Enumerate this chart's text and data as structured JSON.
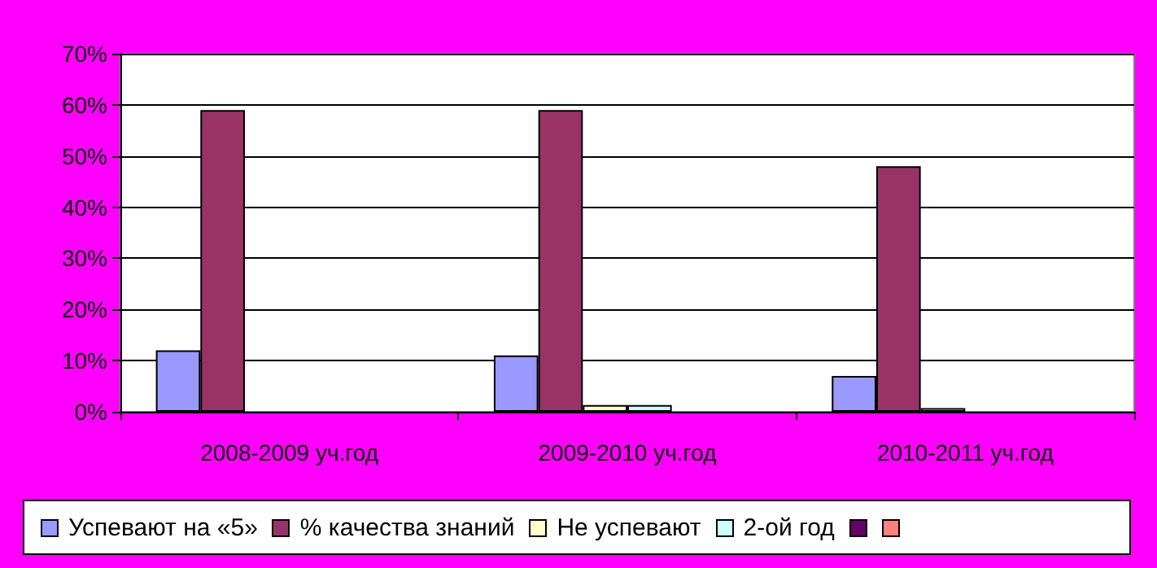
{
  "chart_data": {
    "type": "bar",
    "categories": [
      "2008-2009 уч.год",
      "2009-2010 уч.год",
      "2010-2011 уч.год"
    ],
    "series": [
      {
        "name": "Успевают на «5»",
        "color": "#9999ff",
        "values": [
          12,
          11,
          7
        ]
      },
      {
        "name": "% качества знаний",
        "color": "#993366",
        "values": [
          59,
          59,
          48
        ]
      },
      {
        "name": "Не успевают",
        "color": "#ffffcc",
        "values": [
          0,
          1.3,
          0.7
        ]
      },
      {
        "name": "2-ой год",
        "color": "#ccffff",
        "values": [
          0,
          1.3,
          0
        ]
      },
      {
        "color": "#660066",
        "values": [
          0,
          0,
          0
        ]
      },
      {
        "color": "#ff8080",
        "values": [
          0,
          0,
          0
        ]
      }
    ],
    "ylim": [
      0,
      70
    ],
    "yticks": [
      {
        "value": 0,
        "label": "0%"
      },
      {
        "value": 10,
        "label": "10%"
      },
      {
        "value": 20,
        "label": "20%"
      },
      {
        "value": 30,
        "label": "30%"
      },
      {
        "value": 40,
        "label": "40%"
      },
      {
        "value": 50,
        "label": "50%"
      },
      {
        "value": 60,
        "label": "60%"
      },
      {
        "value": 70,
        "label": "70%"
      }
    ],
    "grid": "y",
    "legend": "bottom"
  }
}
